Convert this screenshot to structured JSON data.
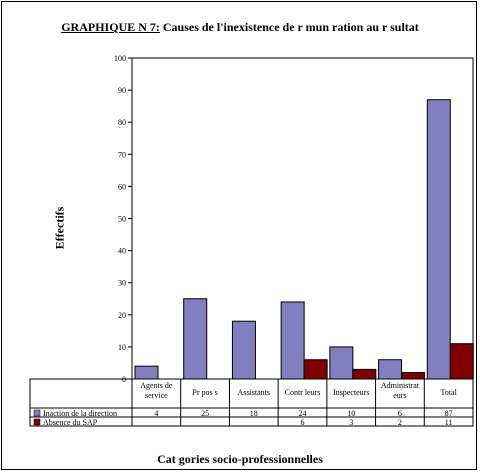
{
  "title": {
    "lead": "GRAPHIQUE N   7:",
    "text": " Causes de l'inexistence de r  mun  ration au r  sultat"
  },
  "chart_data": {
    "type": "bar",
    "categories": [
      "Agents de service",
      "Pr pos s",
      "Assistants",
      "Contr leurs",
      "Inspecteurs",
      "Administrat eurs",
      "Total"
    ],
    "category_lines": [
      [
        "Agents de",
        "service"
      ],
      [
        "Pr pos s"
      ],
      [
        "Assistants"
      ],
      [
        "Contr leurs"
      ],
      [
        "Inspecteurs"
      ],
      [
        "Administrat",
        "eurs"
      ],
      [
        "Total"
      ]
    ],
    "series": [
      {
        "name": "Inaction de la direction",
        "color": "#8080c0",
        "values": [
          4,
          25,
          18,
          24,
          10,
          6,
          87
        ]
      },
      {
        "name": "Absence du SAP",
        "color": "#800000",
        "values": [
          null,
          null,
          null,
          6,
          3,
          2,
          11
        ]
      }
    ],
    "ylabel": "Effectifs",
    "xlabel": "Cat  gories socio-professionnelles",
    "ylim": [
      0,
      100
    ],
    "yticks": [
      0,
      10,
      20,
      30,
      40,
      50,
      60,
      70,
      80,
      90,
      100
    ],
    "grid": false,
    "legend": "data-table"
  }
}
